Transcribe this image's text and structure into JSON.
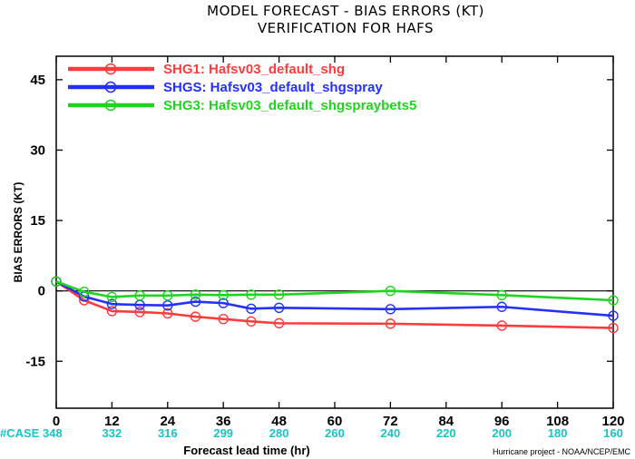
{
  "chart_data": {
    "type": "line",
    "title": "MODEL FORECAST - BIAS ERRORS (KT)",
    "subtitle": "VERIFICATION FOR HAFS",
    "xlabel": "Forecast lead time (hr)",
    "ylabel": "BIAS ERRORS (KT)",
    "xlim": [
      0,
      120
    ],
    "ylim": [
      -25,
      50
    ],
    "x_ticks": [
      0,
      12,
      24,
      36,
      48,
      60,
      72,
      84,
      96,
      108,
      120
    ],
    "y_ticks": [
      -15,
      0,
      15,
      30,
      45
    ],
    "zero_line": true,
    "grid": false,
    "legend_position": "top-left",
    "case_label": "#CASE",
    "case_counts": [
      {
        "x": 0,
        "n": "348"
      },
      {
        "x": 12,
        "n": "332"
      },
      {
        "x": 24,
        "n": "316"
      },
      {
        "x": 36,
        "n": "299"
      },
      {
        "x": 48,
        "n": "280"
      },
      {
        "x": 60,
        "n": "260"
      },
      {
        "x": 72,
        "n": "240"
      },
      {
        "x": 84,
        "n": "220"
      },
      {
        "x": 96,
        "n": "200"
      },
      {
        "x": 108,
        "n": "180"
      },
      {
        "x": 120,
        "n": "160"
      }
    ],
    "credit": "Hurricane project - NOAA/NCEP/EMC",
    "series": [
      {
        "name": "SHG1: Hafsv03_default_shg",
        "color": "#ff3b3b",
        "x": [
          0,
          6,
          12,
          18,
          24,
          30,
          36,
          42,
          48,
          72,
          96,
          120
        ],
        "y": [
          2.0,
          -2.0,
          -4.3,
          -4.5,
          -4.8,
          -5.5,
          -6.0,
          -6.5,
          -6.9,
          -7.0,
          -7.4,
          -7.9
        ]
      },
      {
        "name": "SHGS: Hafsv03_default_shgspray",
        "color": "#2430ff",
        "x": [
          0,
          6,
          12,
          18,
          24,
          30,
          36,
          42,
          48,
          72,
          96,
          120
        ],
        "y": [
          2.0,
          -1.2,
          -2.8,
          -3.0,
          -3.1,
          -2.3,
          -2.6,
          -3.8,
          -3.6,
          -3.9,
          -3.4,
          -5.3
        ]
      },
      {
        "name": "SHG3: Hafsv03_default_shgspraybets5",
        "color": "#1fd41f",
        "x": [
          0,
          6,
          12,
          18,
          24,
          30,
          36,
          42,
          48,
          72,
          96,
          120
        ],
        "y": [
          2.0,
          -0.2,
          -1.3,
          -1.0,
          -1.0,
          -0.8,
          -0.9,
          -0.8,
          -0.8,
          0.0,
          -0.9,
          -2.0
        ]
      }
    ]
  }
}
